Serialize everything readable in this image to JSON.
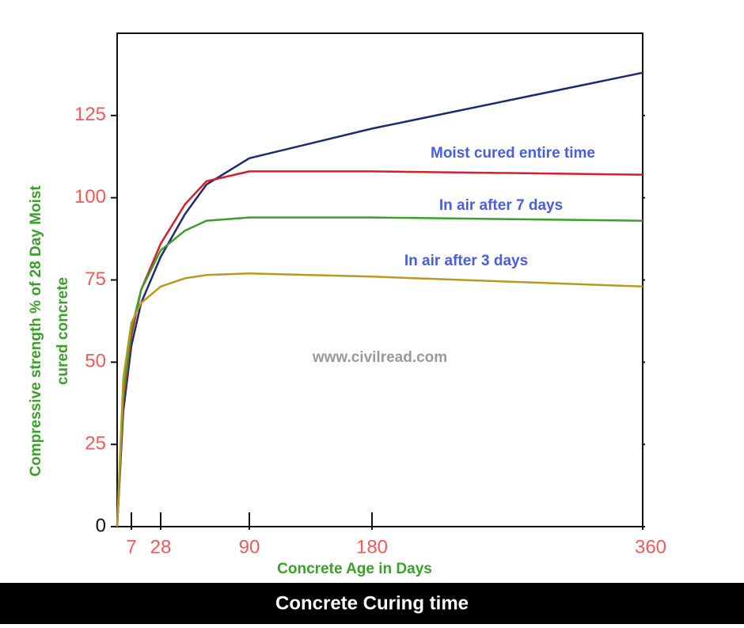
{
  "chart_data": {
    "type": "line",
    "title": "Concrete Curing time",
    "xlabel": "Concrete Age in Days",
    "ylabel": [
      "Compressive strength  % of 28 Day Moist",
      "cured concrete"
    ],
    "watermark": "www.civilread.com",
    "x": [
      0,
      3,
      7,
      14,
      28,
      45,
      60,
      90,
      180,
      360
    ],
    "series": [
      {
        "color": "#1f2a6e",
        "values": [
          0,
          35,
          55,
          68,
          82,
          95,
          104,
          112,
          121,
          138
        ]
      },
      {
        "name": "Moist cured entire time",
        "color": "#d2202e",
        "values": [
          0,
          38,
          58,
          72,
          86,
          98,
          105,
          108,
          108,
          107
        ]
      },
      {
        "name": "In air after 7 days",
        "color": "#3aa02a",
        "values": [
          0,
          40,
          60,
          72,
          84,
          90,
          93,
          94,
          94,
          93
        ]
      },
      {
        "name": "In air after 3  days",
        "color": "#b89a20",
        "values": [
          0,
          45,
          62,
          68,
          73,
          75.5,
          76.5,
          77,
          76,
          73
        ]
      }
    ],
    "xlim": [
      0,
      360
    ],
    "xticks": [
      7,
      28,
      90,
      180,
      360
    ],
    "ylim": [
      0,
      150
    ],
    "yticks": [
      0,
      25,
      50,
      75,
      100,
      125
    ]
  }
}
